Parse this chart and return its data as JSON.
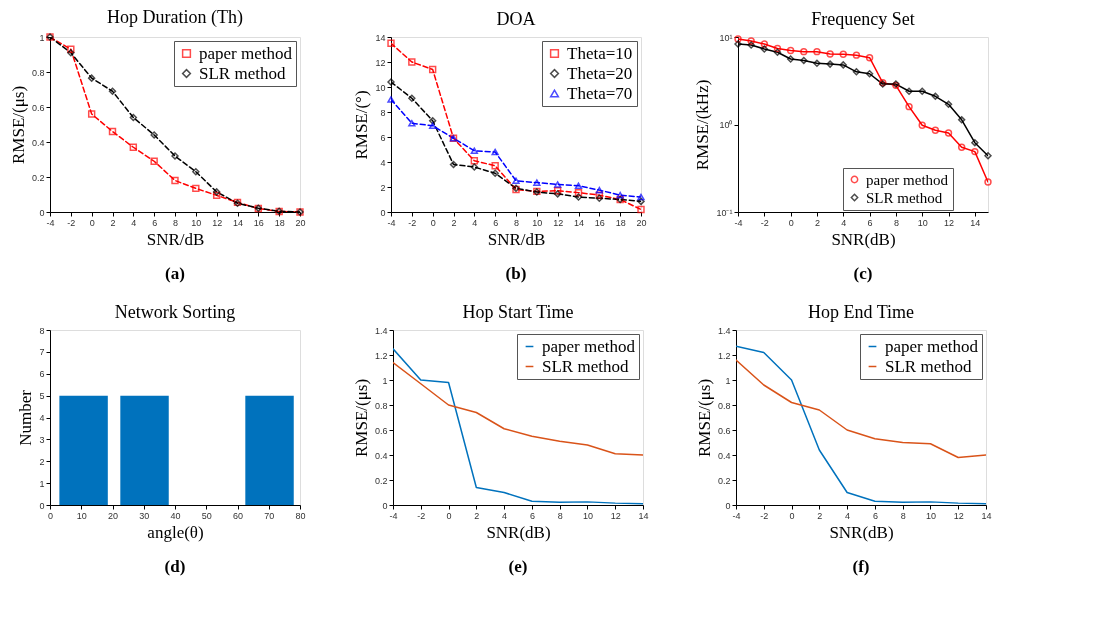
{
  "chart_data": [
    {
      "type": "line",
      "title": "Hop Duration (Th)",
      "xlabel": "SNR/dB",
      "ylabel": "RMSE/(μs)",
      "annotations": [
        "(a)"
      ],
      "x": [
        -4,
        -2,
        0,
        2,
        4,
        6,
        8,
        10,
        12,
        14,
        16,
        18,
        20
      ],
      "xlim": [
        -4,
        20
      ],
      "xticks": [
        -4,
        -2,
        0,
        2,
        4,
        6,
        8,
        10,
        12,
        14,
        16,
        18,
        20
      ],
      "ylim": [
        0,
        1
      ],
      "yticks": [
        0,
        0.2,
        0.4,
        0.6,
        0.8,
        1
      ],
      "legend": "top right",
      "line_style": "dashed",
      "grid": false,
      "series": [
        {
          "name": "paper method",
          "color": "#ff0000",
          "marker": "square",
          "values": [
            1,
            0.93,
            0.56,
            0.46,
            0.37,
            0.29,
            0.18,
            0.135,
            0.095,
            0.055,
            0.02,
            0.003,
            0.0
          ]
        },
        {
          "name": "SLR method",
          "color": "#000000",
          "marker": "diamond",
          "values": [
            1,
            0.91,
            0.765,
            0.69,
            0.54,
            0.44,
            0.32,
            0.23,
            0.115,
            0.05,
            0.022,
            0.004,
            0.0
          ]
        }
      ]
    },
    {
      "type": "line",
      "title": "DOA",
      "xlabel": "SNR/dB",
      "ylabel": "RMSE/(°)",
      "annotations": [
        "(b)"
      ],
      "x": [
        -4,
        -2,
        0,
        2,
        4,
        6,
        8,
        10,
        12,
        14,
        16,
        18,
        20
      ],
      "xlim": [
        -4,
        20
      ],
      "xticks": [
        -4,
        -2,
        0,
        2,
        4,
        6,
        8,
        10,
        12,
        14,
        16,
        18,
        20
      ],
      "ylim": [
        0,
        14
      ],
      "yticks": [
        0,
        2,
        4,
        6,
        8,
        10,
        12,
        14
      ],
      "legend": "top right",
      "line_style": "dashed",
      "grid": false,
      "series": [
        {
          "name": "Theta=10",
          "color": "#ff0000",
          "marker": "square",
          "values": [
            13.5,
            12,
            11.4,
            5.9,
            4.1,
            3.7,
            1.8,
            1.65,
            1.7,
            1.55,
            1.35,
            1.0,
            0.2
          ]
        },
        {
          "name": "Theta=20",
          "color": "#000000",
          "marker": "diamond",
          "values": [
            10.4,
            9.1,
            7.3,
            3.8,
            3.6,
            3.1,
            1.9,
            1.6,
            1.45,
            1.2,
            1.1,
            1.0,
            0.85
          ]
        },
        {
          "name": "Theta=70",
          "color": "#0000ff",
          "marker": "triangle",
          "values": [
            9.0,
            7.1,
            6.9,
            5.9,
            4.9,
            4.8,
            2.5,
            2.35,
            2.2,
            2.1,
            1.75,
            1.35,
            1.2
          ]
        }
      ]
    },
    {
      "type": "line",
      "title": "Frequency Set",
      "xlabel": "SNR(dB)",
      "ylabel": "RMSE/(kHz)",
      "annotations": [
        "(c)"
      ],
      "x": [
        -4,
        -3,
        -2,
        -1,
        0,
        1,
        2,
        3,
        4,
        5,
        6,
        7,
        8,
        9,
        10,
        11,
        12,
        13,
        14,
        15
      ],
      "xlim": [
        -4,
        15
      ],
      "xticks": [
        -4,
        -2,
        0,
        2,
        4,
        6,
        8,
        10,
        12,
        14
      ],
      "log": "y",
      "ylim": [
        0.1,
        10
      ],
      "yticks": [
        {
          "value": 0.1,
          "label": "10⁻¹"
        },
        {
          "value": 1,
          "label": "10⁰"
        },
        {
          "value": 10,
          "label": "10¹"
        }
      ],
      "legend": "bottom right",
      "line_style": "solid",
      "grid": false,
      "series": [
        {
          "name": "paper method",
          "color": "#ff0000",
          "marker": "circle",
          "values": [
            9.5,
            9.0,
            8.3,
            7.4,
            7.0,
            6.8,
            6.8,
            6.4,
            6.35,
            6.2,
            5.8,
            3.0,
            2.8,
            1.6,
            0.98,
            0.86,
            0.8,
            0.55,
            0.49,
            0.22
          ]
        },
        {
          "name": "SLR method",
          "color": "#000000",
          "marker": "diamond",
          "values": [
            8.3,
            8.1,
            7.3,
            6.7,
            5.6,
            5.4,
            5.0,
            4.9,
            4.8,
            4.0,
            3.8,
            2.9,
            2.9,
            2.4,
            2.4,
            2.1,
            1.7,
            1.13,
            0.62,
            0.44
          ]
        }
      ]
    },
    {
      "type": "histogram",
      "title": "Network Sorting",
      "xlabel": "angle(θ)",
      "ylabel": "Number",
      "annotations": [
        "(d)"
      ],
      "bins": [
        3,
        18.5,
        22.5,
        38,
        62.5,
        78
      ],
      "values": [
        5,
        0,
        5,
        0,
        5
      ],
      "color": "#0072bd",
      "xlim": [
        0,
        80
      ],
      "xticks": [
        0,
        10,
        20,
        30,
        40,
        50,
        60,
        70,
        80
      ],
      "ylim": [
        0,
        8
      ],
      "yticks": [
        0,
        1,
        2,
        3,
        4,
        5,
        6,
        7,
        8
      ],
      "grid": false
    },
    {
      "type": "line",
      "title": "Hop Start Time",
      "xlabel": "SNR(dB)",
      "ylabel": "RMSE/(μs)",
      "annotations": [
        "(e)"
      ],
      "x": [
        -4,
        -2,
        0,
        2,
        4,
        6,
        8,
        10,
        12,
        14
      ],
      "xlim": [
        -4,
        14
      ],
      "xticks": [
        -4,
        -2,
        0,
        2,
        4,
        6,
        8,
        10,
        12,
        14
      ],
      "ylim": [
        0,
        1.4
      ],
      "yticks": [
        0,
        0.2,
        0.4,
        0.6,
        0.8,
        1,
        1.2,
        1.4
      ],
      "legend": "top right",
      "line_style": "solid",
      "marker": "none",
      "grid": false,
      "series": [
        {
          "name": "paper method",
          "color": "#0072bd",
          "values": [
            1.25,
            1.0,
            0.98,
            0.14,
            0.1,
            0.03,
            0.022,
            0.025,
            0.015,
            0.01
          ]
        },
        {
          "name": "SLR method",
          "color": "#d95319",
          "values": [
            1.14,
            0.97,
            0.8,
            0.74,
            0.61,
            0.55,
            0.51,
            0.48,
            0.41,
            0.4
          ]
        }
      ]
    },
    {
      "type": "line",
      "title": "Hop End Time",
      "xlabel": "SNR(dB)",
      "ylabel": "RMSE/(μs)",
      "annotations": [
        "(f)"
      ],
      "x": [
        -4,
        -2,
        0,
        2,
        4,
        6,
        8,
        10,
        12,
        14
      ],
      "xlim": [
        -4,
        14
      ],
      "xticks": [
        -4,
        -2,
        0,
        2,
        4,
        6,
        8,
        10,
        12,
        14
      ],
      "ylim": [
        0,
        1.4
      ],
      "yticks": [
        0,
        0.2,
        0.4,
        0.6,
        0.8,
        1,
        1.2,
        1.4
      ],
      "legend": "top right",
      "line_style": "solid",
      "marker": "none",
      "grid": false,
      "series": [
        {
          "name": "paper method",
          "color": "#0072bd",
          "values": [
            1.27,
            1.22,
            1.0,
            0.44,
            0.1,
            0.03,
            0.022,
            0.025,
            0.015,
            0.01
          ]
        },
        {
          "name": "SLR method",
          "color": "#d95319",
          "values": [
            1.16,
            0.96,
            0.82,
            0.76,
            0.6,
            0.53,
            0.5,
            0.49,
            0.38,
            0.4
          ]
        }
      ]
    }
  ]
}
